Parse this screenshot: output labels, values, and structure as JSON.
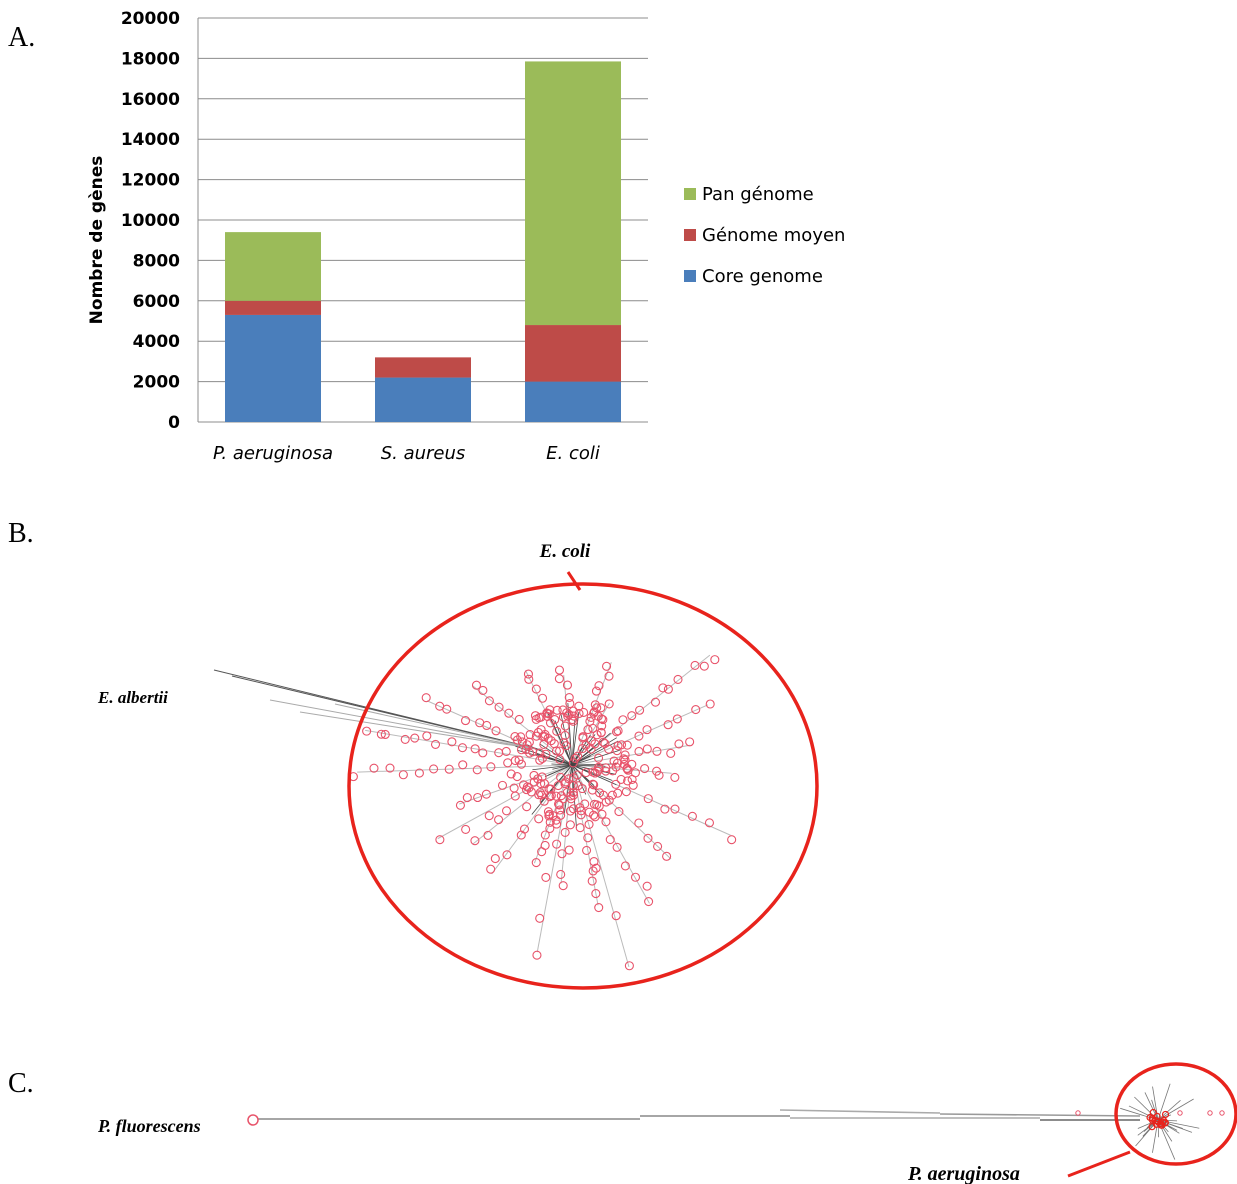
{
  "panels": {
    "a": "A.",
    "b": "B.",
    "c": "C."
  },
  "chart_data": {
    "type": "bar",
    "stacked": true,
    "categories": [
      "P. aeruginosa",
      "S. aureus",
      "E. coli"
    ],
    "series": [
      {
        "name": "Core genome",
        "color": "#4a7ebb",
        "values": [
          5300,
          2200,
          2000
        ]
      },
      {
        "name": "Génome moyen",
        "color": "#be4b48",
        "values": [
          700,
          1000,
          2800
        ]
      },
      {
        "name": "Pan génome",
        "color": "#9bbb59",
        "values": [
          3400,
          0,
          13050
        ]
      }
    ],
    "ylabel": "Nombre de gènes",
    "ylim": [
      0,
      20000
    ],
    "yticks": [
      0,
      2000,
      4000,
      6000,
      8000,
      10000,
      12000,
      14000,
      16000,
      18000,
      20000
    ],
    "grid": true,
    "legend_position": "right",
    "legend_order": [
      "Pan génome",
      "Génome moyen",
      "Core genome"
    ]
  },
  "tree_b": {
    "highlight_label": "E. coli",
    "outgroup_label": "E. albertii"
  },
  "tree_c": {
    "outgroup_label": "P. fluorescens",
    "highlight_label": "P. aeruginosa"
  }
}
